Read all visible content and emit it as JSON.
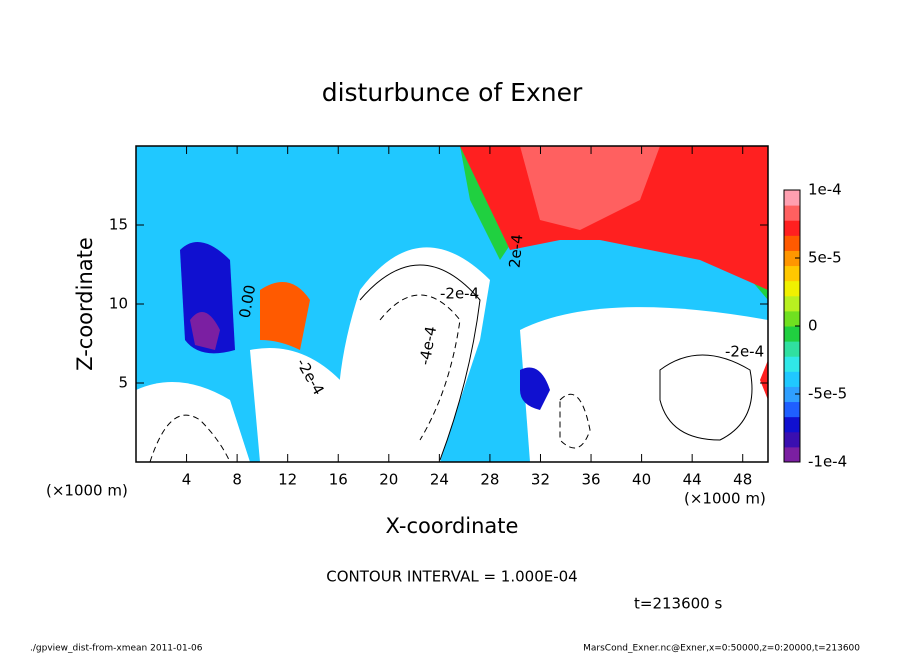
{
  "chart_data": {
    "type": "contour",
    "title": "disturbunce of Exner",
    "x_label": "X-coordinate",
    "y_label": "Z-coordinate",
    "x_unit": "(×1000 m)",
    "xlim": [
      0,
      50
    ],
    "xticks": [
      4,
      8,
      12,
      16,
      20,
      24,
      28,
      32,
      36,
      40,
      44,
      48
    ],
    "ylim": [
      0,
      20
    ],
    "yticks": [
      5,
      10,
      15
    ],
    "colorbar": {
      "lim": [
        -0.0001,
        0.0001
      ],
      "ticks": [
        {
          "value": 0.0001,
          "label": "1e-4"
        },
        {
          "value": 5e-05,
          "label": "5e-5"
        },
        0,
        {
          "value": -5e-05,
          "label": "-5e-5"
        },
        {
          "value": -0.0001,
          "label": "-1e-4"
        }
      ],
      "colors": [
        "#7b1fa2",
        "#3a0fb0",
        "#1010d0",
        "#1f5fff",
        "#2f9fff",
        "#20c8ff",
        "#30e8e8",
        "#30e0a0",
        "#20d040",
        "#70e020",
        "#b8f020",
        "#f0f000",
        "#ffc800",
        "#ff9600",
        "#ff5a00",
        "#ff2020",
        "#ff6060",
        "#ff9fb0"
      ]
    },
    "contour_labels": [
      "-2e-4",
      "-2e-4",
      "-4e-4",
      "0.00",
      "2e-4",
      "-2e-4"
    ],
    "contour_interval": "CONTOUR INTERVAL = 1.000E-04",
    "time": "t=213600 s",
    "footer_left": "./gpview_dist-from-xmean  2011-01-06",
    "footer_right": "MarsCond_Exner.nc@Exner,x=0:50000,z=0:20000,t=213600"
  }
}
